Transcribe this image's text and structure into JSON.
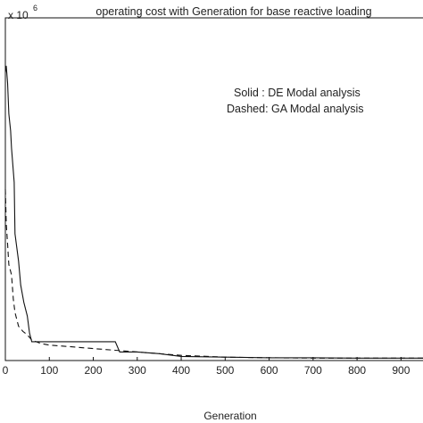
{
  "chart_data": {
    "type": "line",
    "title": "operating cost with Generation for base reactive loading",
    "xlabel": "Generation",
    "ylabel": "",
    "exponent_base": "x 10",
    "exponent_power": "6",
    "xlim": [
      0,
      950
    ],
    "ylim": [
      0,
      1
    ],
    "xticks": [
      0,
      100,
      200,
      300,
      400,
      500,
      600,
      700,
      800,
      900
    ],
    "annotations": [
      "Solid : DE Modal analysis",
      "Dashed: GA Modal analysis"
    ],
    "grid": false,
    "series": [
      {
        "name": "DE Modal analysis",
        "style": "solid",
        "x": [
          0,
          2,
          5,
          8,
          12,
          14,
          20,
          22,
          30,
          35,
          42,
          50,
          55,
          60,
          100,
          130,
          200,
          250,
          260,
          300,
          350,
          400,
          500,
          600,
          700,
          800,
          900,
          950
        ],
        "y": [
          0.84,
          0.86,
          0.81,
          0.72,
          0.67,
          0.62,
          0.52,
          0.37,
          0.29,
          0.22,
          0.17,
          0.13,
          0.08,
          0.055,
          0.055,
          0.055,
          0.055,
          0.055,
          0.025,
          0.025,
          0.02,
          0.012,
          0.01,
          0.008,
          0.008,
          0.007,
          0.007,
          0.007
        ]
      },
      {
        "name": "GA Modal analysis",
        "style": "dashed",
        "x": [
          0,
          2,
          5,
          8,
          10,
          14,
          18,
          22,
          26,
          30,
          40,
          50,
          60,
          80,
          100,
          150,
          200,
          250,
          300,
          350,
          400,
          500,
          600,
          700,
          800,
          900,
          950
        ],
        "y": [
          0.5,
          0.4,
          0.34,
          0.28,
          0.27,
          0.25,
          0.18,
          0.14,
          0.12,
          0.1,
          0.085,
          0.075,
          0.06,
          0.05,
          0.045,
          0.04,
          0.035,
          0.03,
          0.025,
          0.02,
          0.015,
          0.01,
          0.008,
          0.007,
          0.007,
          0.007,
          0.007
        ]
      }
    ]
  }
}
